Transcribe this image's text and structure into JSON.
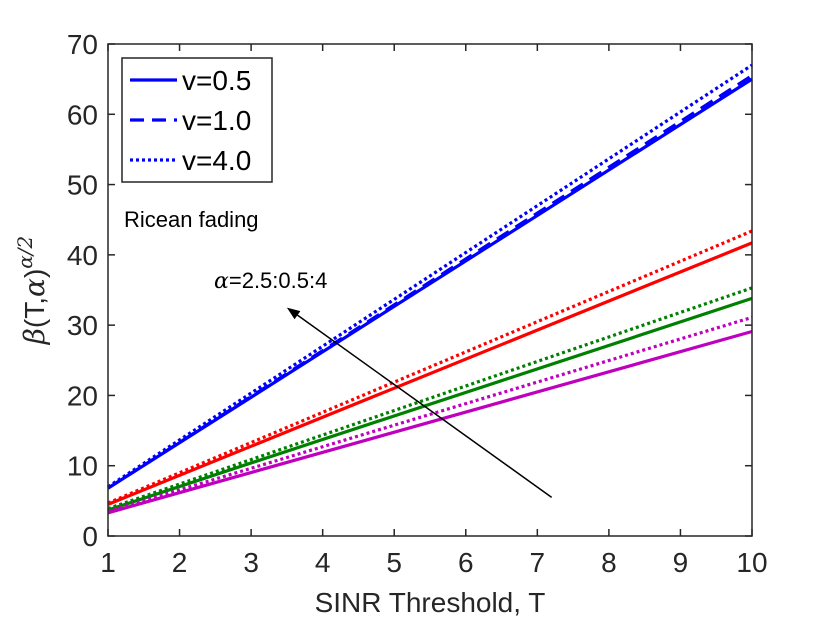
{
  "chart_data": {
    "type": "line",
    "title": "",
    "xlabel": "SINR Threshold, T",
    "ylabel": {
      "beta": "β",
      "args": "(T,",
      "alpha": "α",
      "close": ")",
      "exponent": "α/2"
    },
    "xlim": [
      1,
      10
    ],
    "ylim": [
      0,
      70
    ],
    "xticks": [
      "1",
      "2",
      "3",
      "4",
      "5",
      "6",
      "7",
      "8",
      "9",
      "10"
    ],
    "yticks": [
      "0",
      "10",
      "20",
      "30",
      "40",
      "50",
      "60",
      "70"
    ],
    "grid": false,
    "legend": {
      "placement": "top-left",
      "entries": [
        {
          "label": "v=0.5",
          "style": "solid",
          "color": "#0000ff"
        },
        {
          "label": "v=1.0",
          "style": "dashed",
          "color": "#0000ff"
        },
        {
          "label": "v=4.0",
          "style": "dotted",
          "color": "#0000ff"
        }
      ]
    },
    "annotations": [
      {
        "name": "ricean-label",
        "text": "Ricean fading"
      },
      {
        "name": "alpha-label",
        "alpha": "α",
        "text": "=2.5:0.5:4"
      }
    ],
    "arrow": {
      "from": [
        7.2,
        5.5
      ],
      "to": [
        3.5,
        32.5
      ]
    },
    "series": [
      {
        "name": "alpha=2.5, v=0.5",
        "color": "#0000ff",
        "style": "solid",
        "x": [
          1,
          10
        ],
        "y": [
          6.8,
          65.0
        ]
      },
      {
        "name": "alpha=2.5, v=1.0",
        "color": "#0000ff",
        "style": "dashed",
        "x": [
          1,
          10
        ],
        "y": [
          6.8,
          65.5
        ]
      },
      {
        "name": "alpha=2.5, v=4.0",
        "color": "#0000ff",
        "style": "dotted",
        "x": [
          1,
          10
        ],
        "y": [
          7.0,
          67.0
        ]
      },
      {
        "name": "alpha=3.0, v=0.5",
        "color": "#ff0000",
        "style": "solid",
        "x": [
          1,
          10
        ],
        "y": [
          4.5,
          41.7
        ]
      },
      {
        "name": "alpha=3.0, v=4.0",
        "color": "#ff0000",
        "style": "dotted",
        "x": [
          1,
          10
        ],
        "y": [
          4.7,
          43.4
        ]
      },
      {
        "name": "alpha=3.5, v=0.5",
        "color": "#008000",
        "style": "solid",
        "x": [
          1,
          10
        ],
        "y": [
          3.7,
          33.8
        ]
      },
      {
        "name": "alpha=3.5, v=4.0",
        "color": "#008000",
        "style": "dotted",
        "x": [
          1,
          10
        ],
        "y": [
          3.9,
          35.3
        ]
      },
      {
        "name": "alpha=4.0, v=0.5",
        "color": "#bf00bf",
        "style": "solid",
        "x": [
          1,
          10
        ],
        "y": [
          3.3,
          29.1
        ]
      },
      {
        "name": "alpha=4.0, v=4.0",
        "color": "#bf00bf",
        "style": "dotted",
        "x": [
          1,
          10
        ],
        "y": [
          3.5,
          31.1
        ]
      }
    ]
  }
}
